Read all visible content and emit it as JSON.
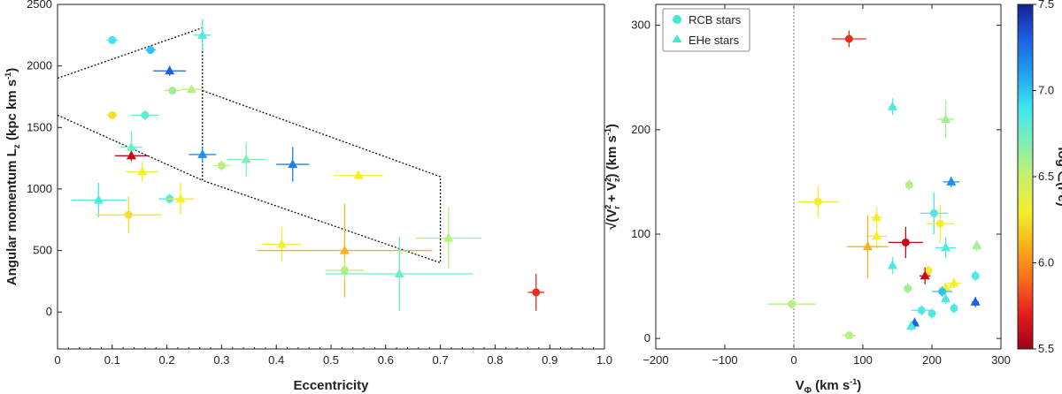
{
  "chart_data": [
    {
      "type": "scatter",
      "xlabel": "Eccentricity",
      "ylabel_main": "Angular momentum L",
      "ylabel_sub": "z",
      "ylabel_unit": "(kpc  km s",
      "ylabel_exp": "-1",
      "ylabel_close": ")",
      "xlim": [
        0,
        1.0
      ],
      "ylim": [
        -300,
        2500
      ],
      "xticks": [
        "0",
        "0.1",
        "0.2",
        "0.3",
        "0.4",
        "0.5",
        "0.6",
        "0.7",
        "0.8",
        "0.9",
        "1.0"
      ],
      "yticks": [
        "0",
        "500",
        "1000",
        "1500",
        "2000",
        "2500"
      ],
      "region_upper": [
        [
          0,
          1900
        ],
        [
          0.265,
          2310
        ],
        [
          0.265,
          1070
        ],
        [
          0.7,
          400
        ]
      ],
      "region_lower": [
        [
          0,
          1600
        ],
        [
          0.265,
          1070
        ]
      ],
      "region_right": [
        [
          0.265,
          1800
        ],
        [
          0.7,
          1100
        ],
        [
          0.7,
          400
        ]
      ],
      "points": [
        {
          "x": 0.1,
          "y": 2210,
          "xerr": 0.01,
          "yerr": 30,
          "feh": 6.9,
          "marker": "circle"
        },
        {
          "x": 0.17,
          "y": 2130,
          "xerr": 0.01,
          "yerr": 30,
          "feh": 7.0,
          "marker": "circle"
        },
        {
          "x": 0.265,
          "y": 2250,
          "xerr": 0.015,
          "yerr": 130,
          "feh": 6.85,
          "marker": "triangle"
        },
        {
          "x": 0.205,
          "y": 1960,
          "xerr": 0.03,
          "yerr": 40,
          "feh": 7.3,
          "marker": "triangle"
        },
        {
          "x": 0.21,
          "y": 1800,
          "xerr": 0.015,
          "yerr": 30,
          "feh": 6.6,
          "marker": "circle"
        },
        {
          "x": 0.245,
          "y": 1810,
          "xerr": 0.02,
          "yerr": 30,
          "feh": 6.55,
          "marker": "triangle"
        },
        {
          "x": 0.1,
          "y": 1600,
          "xerr": 0.01,
          "yerr": 20,
          "feh": 6.25,
          "marker": "circle"
        },
        {
          "x": 0.16,
          "y": 1600,
          "xerr": 0.025,
          "yerr": 40,
          "feh": 6.8,
          "marker": "circle"
        },
        {
          "x": 0.135,
          "y": 1340,
          "xerr": 0.02,
          "yerr": 130,
          "feh": 6.75,
          "marker": "triangle"
        },
        {
          "x": 0.135,
          "y": 1270,
          "xerr": 0.03,
          "yerr": 40,
          "feh": 5.6,
          "marker": "triangle"
        },
        {
          "x": 0.265,
          "y": 1280,
          "xerr": 0.025,
          "yerr": 60,
          "feh": 7.15,
          "marker": "triangle"
        },
        {
          "x": 0.155,
          "y": 1140,
          "xerr": 0.03,
          "yerr": 80,
          "feh": 6.3,
          "marker": "triangle"
        },
        {
          "x": 0.3,
          "y": 1190,
          "xerr": 0.015,
          "yerr": 40,
          "feh": 6.55,
          "marker": "circle"
        },
        {
          "x": 0.345,
          "y": 1240,
          "xerr": 0.035,
          "yerr": 140,
          "feh": 6.7,
          "marker": "triangle"
        },
        {
          "x": 0.43,
          "y": 1200,
          "xerr": 0.03,
          "yerr": 140,
          "feh": 7.2,
          "marker": "triangle"
        },
        {
          "x": 0.55,
          "y": 1110,
          "xerr": 0.045,
          "yerr": 30,
          "feh": 6.3,
          "marker": "triangle"
        },
        {
          "x": 0.075,
          "y": 910,
          "xerr": 0.05,
          "yerr": 140,
          "feh": 6.85,
          "marker": "triangle"
        },
        {
          "x": 0.205,
          "y": 920,
          "xerr": 0.02,
          "yerr": 40,
          "feh": 6.85,
          "marker": "circle"
        },
        {
          "x": 0.225,
          "y": 920,
          "xerr": 0.025,
          "yerr": 130,
          "feh": 6.3,
          "marker": "triangle"
        },
        {
          "x": 0.13,
          "y": 790,
          "xerr": 0.06,
          "yerr": 150,
          "feh": 6.25,
          "marker": "circle"
        },
        {
          "x": 0.41,
          "y": 550,
          "xerr": 0.035,
          "yerr": 140,
          "feh": 6.3,
          "marker": "triangle"
        },
        {
          "x": 0.525,
          "y": 500,
          "xerr": 0.16,
          "yerr": 380,
          "feh": 6.1,
          "marker": "triangle"
        },
        {
          "x": 0.715,
          "y": 600,
          "xerr": 0.06,
          "yerr": 250,
          "feh": 6.55,
          "marker": "triangle"
        },
        {
          "x": 0.525,
          "y": 340,
          "xerr": 0.035,
          "yerr": 90,
          "feh": 6.55,
          "marker": "circle"
        },
        {
          "x": 0.625,
          "y": 310,
          "xerr": 0.135,
          "yerr": 300,
          "feh": 6.75,
          "marker": "triangle"
        },
        {
          "x": 0.875,
          "y": 160,
          "xerr": 0.015,
          "yerr": 150,
          "feh": 5.75,
          "marker": "circle"
        }
      ]
    },
    {
      "type": "scatter",
      "xlabel_main": "V",
      "xlabel_sub": "Φ",
      "xlabel_unit": " (km s",
      "xlabel_exp": "-1",
      "xlabel_close": ")",
      "ylabel_unit": "(km s",
      "ylabel_exp": "-1",
      "ylabel_close": ")",
      "ylabel_sqrt": "√",
      "ylabel_expr": "(V",
      "ylabel_plus": " + V",
      "ylabel_r": "r",
      "ylabel_z": "z",
      "ylabel_2": "2",
      "ylabel_paren": ")",
      "xlim": [
        -200,
        300
      ],
      "ylim": [
        -10,
        320
      ],
      "xticks": [
        "−200",
        "−100",
        "0",
        "100",
        "200",
        "300"
      ],
      "yticks": [
        "0",
        "100",
        "200",
        "300"
      ],
      "legend": [
        {
          "label": "RCB stars",
          "marker": "circle"
        },
        {
          "label": "EHe stars",
          "marker": "triangle"
        }
      ],
      "points": [
        {
          "x": 80,
          "y": 287,
          "xerr": 25,
          "yerr": 8,
          "feh": 5.75,
          "marker": "circle"
        },
        {
          "x": 143,
          "y": 222,
          "xerr": 5,
          "yerr": 8,
          "feh": 6.85,
          "marker": "triangle"
        },
        {
          "x": 220,
          "y": 210,
          "xerr": 12,
          "yerr": 18,
          "feh": 6.6,
          "marker": "triangle"
        },
        {
          "x": 167,
          "y": 147,
          "xerr": 5,
          "yerr": 5,
          "feh": 6.55,
          "marker": "circle"
        },
        {
          "x": 228,
          "y": 150,
          "xerr": 12,
          "yerr": 5,
          "feh": 7.15,
          "marker": "triangle"
        },
        {
          "x": 35,
          "y": 131,
          "xerr": 30,
          "yerr": 15,
          "feh": 6.3,
          "marker": "circle"
        },
        {
          "x": 203,
          "y": 120,
          "xerr": 20,
          "yerr": 20,
          "feh": 6.85,
          "marker": "circle"
        },
        {
          "x": 120,
          "y": 116,
          "xerr": 8,
          "yerr": 10,
          "feh": 6.3,
          "marker": "triangle"
        },
        {
          "x": 212,
          "y": 110,
          "xerr": 20,
          "yerr": 18,
          "feh": 6.3,
          "marker": "circle"
        },
        {
          "x": 120,
          "y": 98,
          "xerr": 15,
          "yerr": 12,
          "feh": 6.3,
          "marker": "triangle"
        },
        {
          "x": 162,
          "y": 92,
          "xerr": 25,
          "yerr": 15,
          "feh": 5.6,
          "marker": "circle"
        },
        {
          "x": 220,
          "y": 87,
          "xerr": 15,
          "yerr": 10,
          "feh": 6.85,
          "marker": "triangle"
        },
        {
          "x": 265,
          "y": 89,
          "xerr": 5,
          "yerr": 5,
          "feh": 6.6,
          "marker": "triangle"
        },
        {
          "x": 107,
          "y": 88,
          "xerr": 30,
          "yerr": 30,
          "feh": 6.1,
          "marker": "triangle"
        },
        {
          "x": 143,
          "y": 70,
          "xerr": 5,
          "yerr": 8,
          "feh": 6.85,
          "marker": "triangle"
        },
        {
          "x": 195,
          "y": 65,
          "xerr": 5,
          "yerr": 5,
          "feh": 6.3,
          "marker": "circle"
        },
        {
          "x": 190,
          "y": 60,
          "xerr": 8,
          "yerr": 8,
          "feh": 5.6,
          "marker": "triangle"
        },
        {
          "x": 263,
          "y": 60,
          "xerr": 5,
          "yerr": 5,
          "feh": 6.85,
          "marker": "circle"
        },
        {
          "x": 232,
          "y": 53,
          "xerr": 10,
          "yerr": 5,
          "feh": 6.3,
          "marker": "triangle"
        },
        {
          "x": 220,
          "y": 49,
          "xerr": 10,
          "yerr": 5,
          "feh": 6.3,
          "marker": "triangle"
        },
        {
          "x": 165,
          "y": 48,
          "xerr": 5,
          "yerr": 5,
          "feh": 6.6,
          "marker": "circle"
        },
        {
          "x": 215,
          "y": 45,
          "xerr": 15,
          "yerr": 5,
          "feh": 7.0,
          "marker": "circle"
        },
        {
          "x": 220,
          "y": 38,
          "xerr": 5,
          "yerr": 5,
          "feh": 6.85,
          "marker": "triangle"
        },
        {
          "x": 263,
          "y": 35,
          "xerr": 5,
          "yerr": 5,
          "feh": 7.3,
          "marker": "triangle"
        },
        {
          "x": -3,
          "y": 33,
          "xerr": 35,
          "yerr": 5,
          "feh": 6.55,
          "marker": "circle"
        },
        {
          "x": 232,
          "y": 29,
          "xerr": 5,
          "yerr": 5,
          "feh": 6.85,
          "marker": "circle"
        },
        {
          "x": 185,
          "y": 27,
          "xerr": 15,
          "yerr": 5,
          "feh": 6.85,
          "marker": "circle"
        },
        {
          "x": 200,
          "y": 24,
          "xerr": 5,
          "yerr": 5,
          "feh": 6.85,
          "marker": "circle"
        },
        {
          "x": 175,
          "y": 15,
          "xerr": 5,
          "yerr": 5,
          "feh": 7.3,
          "marker": "triangle"
        },
        {
          "x": 170,
          "y": 12,
          "xerr": 5,
          "yerr": 5,
          "feh": 6.85,
          "marker": "triangle"
        },
        {
          "x": 80,
          "y": 3,
          "xerr": 10,
          "yerr": 3,
          "feh": 6.55,
          "marker": "circle"
        }
      ]
    },
    {
      "type": "colorbar",
      "label": "log ∈(Fe)",
      "range": [
        5.5,
        7.5
      ],
      "ticks": [
        "5.5",
        "6.0",
        "6.5",
        "7.0",
        "7.5"
      ],
      "colors": [
        "#9e0016",
        "#e41d1d",
        "#fb6a1b",
        "#f9b21a",
        "#f3ef2d",
        "#c8f06c",
        "#7ef0b4",
        "#3fe6f2",
        "#1fa2ee",
        "#1d60e4",
        "#13209a"
      ]
    }
  ]
}
